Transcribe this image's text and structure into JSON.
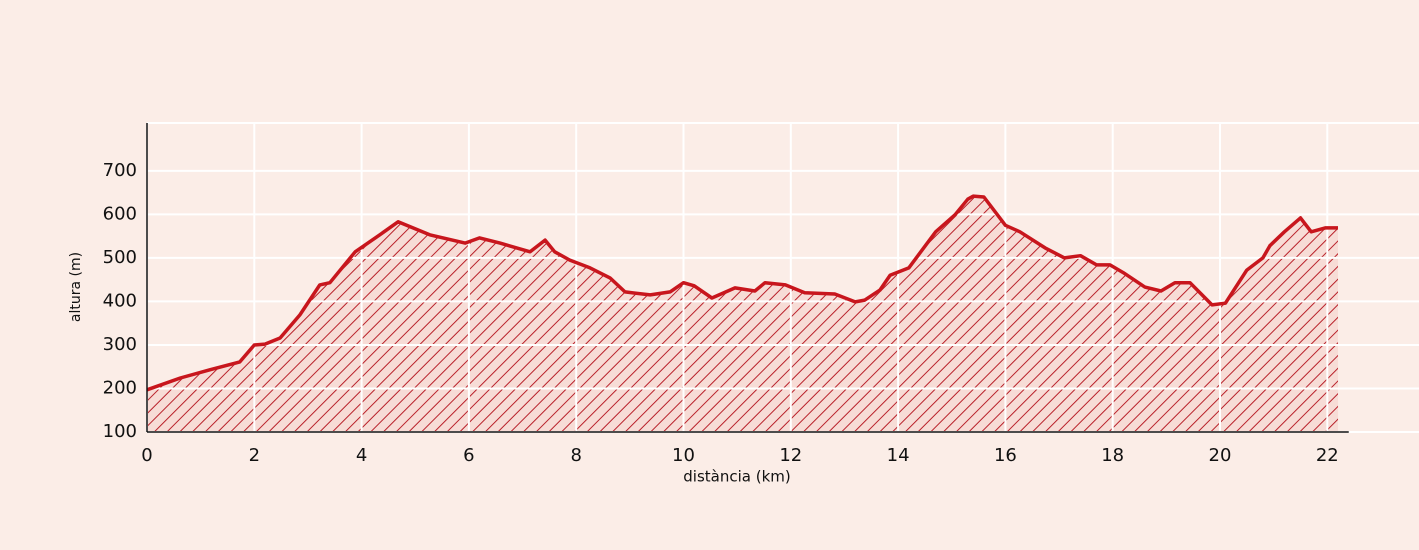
{
  "chart_data": {
    "type": "area",
    "x_label": "distància (km)",
    "y_label": "altura (m)",
    "x": [
      0,
      0.62,
      1.17,
      1.73,
      2.0,
      2.2,
      2.48,
      2.85,
      3.22,
      3.41,
      3.88,
      4.34,
      4.68,
      5.27,
      5.93,
      6.2,
      6.58,
      7.14,
      7.42,
      7.6,
      7.88,
      8.26,
      8.63,
      8.91,
      9.38,
      9.75,
      10.0,
      10.2,
      10.53,
      10.96,
      11.33,
      11.52,
      11.9,
      12.26,
      12.82,
      13.2,
      13.38,
      13.66,
      13.85,
      14.2,
      14.7,
      15.06,
      15.3,
      15.4,
      15.6,
      16.0,
      16.27,
      16.74,
      17.1,
      17.4,
      17.7,
      17.95,
      18.2,
      18.6,
      18.9,
      19.16,
      19.44,
      19.85,
      20.1,
      20.5,
      20.8,
      20.93,
      21.2,
      21.5,
      21.7,
      21.96,
      22.2
    ],
    "values": [
      197,
      224,
      243,
      261,
      300,
      302,
      316,
      369,
      438,
      443,
      514,
      553,
      583,
      553,
      534,
      546,
      534,
      514,
      541,
      514,
      495,
      477,
      454,
      422,
      415,
      422,
      443,
      436,
      408,
      431,
      424,
      443,
      438,
      420,
      417,
      399,
      403,
      426,
      460,
      477,
      560,
      599,
      635,
      642,
      640,
      575,
      560,
      523,
      500,
      505,
      484,
      484,
      466,
      433,
      424,
      443,
      443,
      392,
      396,
      472,
      500,
      528,
      560,
      592,
      560,
      569,
      569
    ],
    "color": "#c8161d",
    "xlim": [
      0,
      22.4
    ],
    "ylim": [
      100,
      810
    ],
    "xticks": [
      0,
      2,
      4,
      6,
      8,
      10,
      12,
      14,
      16,
      18,
      20,
      22
    ],
    "yticks": [
      100,
      200,
      300,
      400,
      500,
      600,
      700
    ],
    "grid": true
  }
}
